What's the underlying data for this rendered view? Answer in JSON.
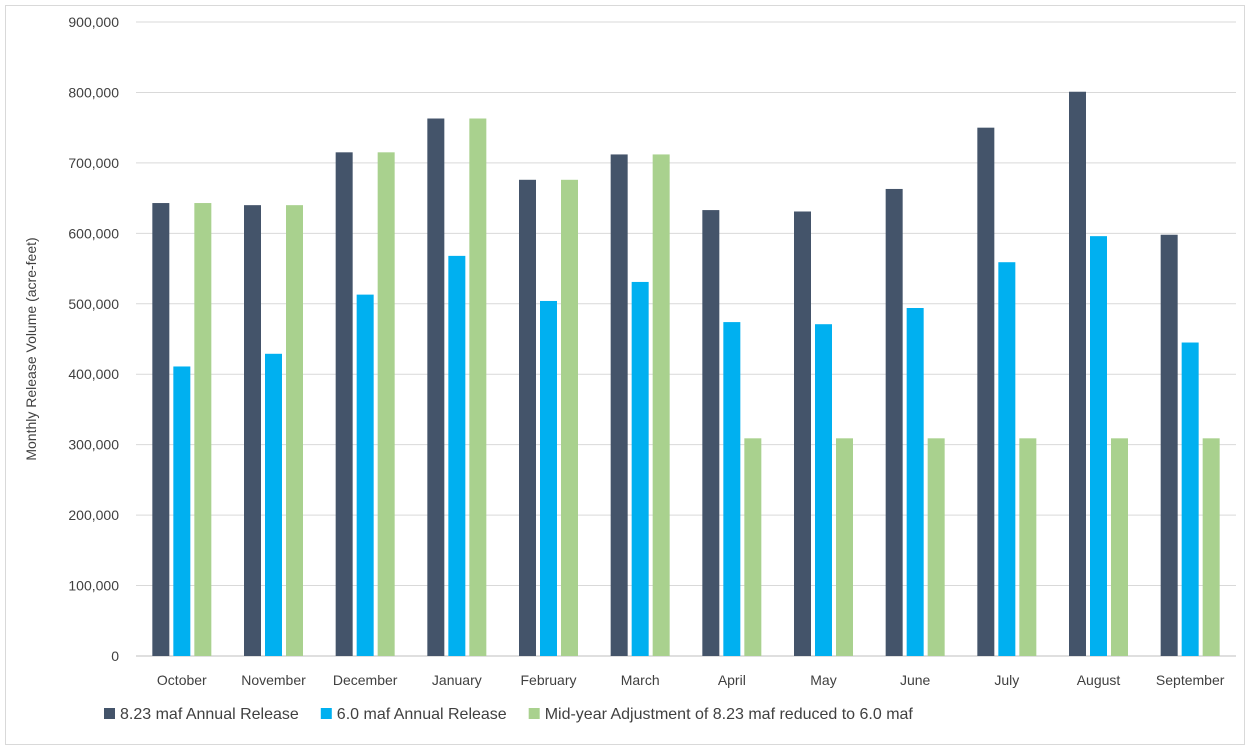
{
  "chart_data": {
    "type": "bar",
    "title": "",
    "xlabel": "",
    "ylabel": "Monthly Release Volume (acre-feet)",
    "ylim": [
      0,
      900000
    ],
    "ytick_step": 100000,
    "grid": true,
    "legend_position": "bottom",
    "categories": [
      "October",
      "November",
      "December",
      "January",
      "February",
      "March",
      "April",
      "May",
      "June",
      "July",
      "August",
      "September"
    ],
    "series": [
      {
        "name": "8.23 maf Annual Release",
        "color": "#44546a",
        "values": [
          643000,
          640000,
          715000,
          763000,
          676000,
          712000,
          633000,
          631000,
          663000,
          750000,
          801000,
          598000
        ]
      },
      {
        "name": "6.0 maf Annual Release",
        "color": "#00b0f0",
        "values": [
          411000,
          429000,
          513000,
          568000,
          504000,
          531000,
          474000,
          471000,
          494000,
          559000,
          596000,
          445000
        ]
      },
      {
        "name": "Mid-year Adjustment of 8.23 maf reduced to 6.0 maf",
        "color": "#a9d18e",
        "values": [
          643000,
          640000,
          715000,
          763000,
          676000,
          712000,
          309000,
          309000,
          309000,
          309000,
          309000,
          309000
        ]
      }
    ]
  }
}
